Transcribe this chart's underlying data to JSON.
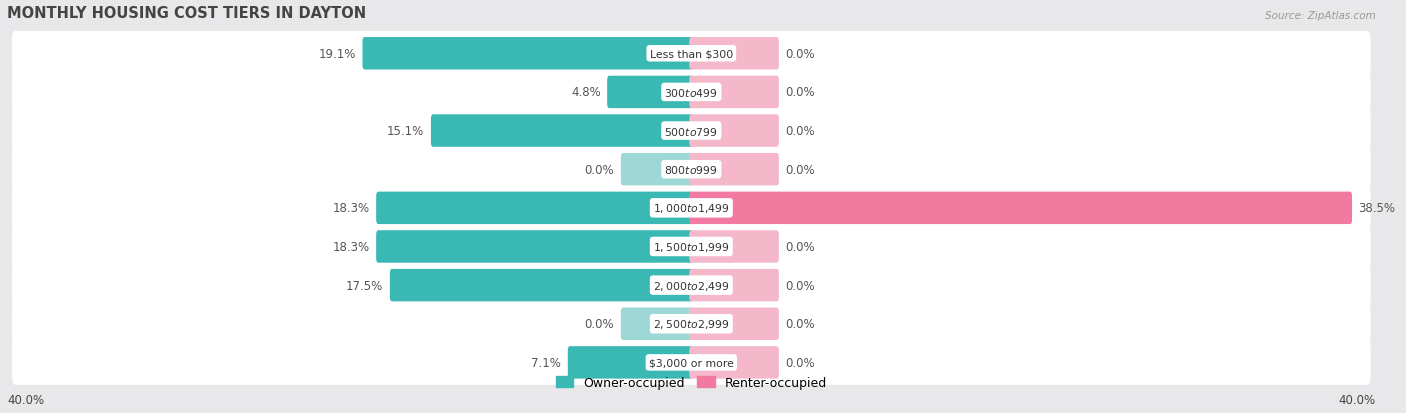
{
  "title": "MONTHLY HOUSING COST TIERS IN DAYTON",
  "source": "Source: ZipAtlas.com",
  "categories": [
    "Less than $300",
    "$300 to $499",
    "$500 to $799",
    "$800 to $999",
    "$1,000 to $1,499",
    "$1,500 to $1,999",
    "$2,000 to $2,499",
    "$2,500 to $2,999",
    "$3,000 or more"
  ],
  "owner_values": [
    19.1,
    4.8,
    15.1,
    0.0,
    18.3,
    18.3,
    17.5,
    0.0,
    7.1
  ],
  "renter_values": [
    0.0,
    0.0,
    0.0,
    0.0,
    38.5,
    0.0,
    0.0,
    0.0,
    0.0
  ],
  "owner_color_full": "#3ab8b3",
  "owner_color_light": "#9dd8d6",
  "renter_color_full": "#f279a0",
  "renter_color_light": "#f5b8cb",
  "axis_max": 40.0,
  "bg_color": "#e8e8ea",
  "row_bg_color": "#ffffff",
  "title_color": "#444444",
  "label_color": "#555555",
  "source_color": "#999999",
  "zero_owner_stub": 4.0,
  "zero_renter_stub": 5.0
}
